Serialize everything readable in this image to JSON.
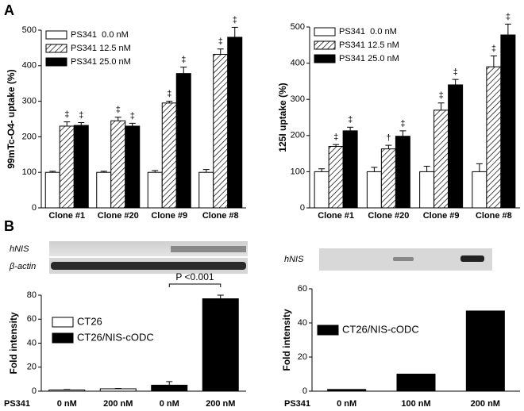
{
  "panels": [
    "A",
    "B"
  ],
  "blots": [
    {
      "labels": [
        "hNIS",
        "β-actin"
      ]
    },
    {
      "labels": [
        "hNIS"
      ]
    }
  ],
  "chart_data": [
    {
      "type": "bar",
      "ylabel": "99mTc-O4- uptake (%)",
      "categories": [
        "Clone #1",
        "Clone #20",
        "Clone #9",
        "Clone #8"
      ],
      "ylim": [
        0,
        500
      ],
      "yticks": [
        0,
        100,
        200,
        300,
        400,
        500
      ],
      "legend": "upper left",
      "series": [
        {
          "name": "PS341  0.0 nM",
          "color": "#ffffff",
          "values": [
            100,
            100,
            100,
            100
          ],
          "errors": [
            3,
            3,
            5,
            8
          ]
        },
        {
          "name": "PS341 12.5 nM",
          "color": "#ffffff",
          "hatch": true,
          "values": [
            230,
            245,
            295,
            432
          ],
          "errors": [
            12,
            10,
            5,
            15
          ],
          "markers": [
            "‡",
            "‡",
            "‡",
            "‡"
          ]
        },
        {
          "name": "PS341 25.0 nM",
          "color": "#000000",
          "values": [
            232,
            230,
            378,
            480
          ],
          "errors": [
            8,
            8,
            18,
            28
          ],
          "markers": [
            "‡",
            "‡",
            "‡",
            "‡"
          ]
        }
      ]
    },
    {
      "type": "bar",
      "ylabel": "125I uptake (%)",
      "categories": [
        "Clone #1",
        "Clone #20",
        "Clone #9",
        "Clone #8"
      ],
      "ylim": [
        0,
        500
      ],
      "yticks": [
        0,
        100,
        200,
        300,
        400,
        500
      ],
      "legend": "upper left",
      "series": [
        {
          "name": "PS341  0.0 nM",
          "color": "#ffffff",
          "values": [
            100,
            100,
            100,
            100
          ],
          "errors": [
            8,
            12,
            15,
            22
          ]
        },
        {
          "name": "PS341 12.5 nM",
          "color": "#ffffff",
          "hatch": true,
          "values": [
            170,
            163,
            270,
            390
          ],
          "errors": [
            5,
            10,
            20,
            30
          ],
          "markers": [
            "‡",
            "†",
            "‡",
            "‡"
          ]
        },
        {
          "name": "PS341 25.0 nM",
          "color": "#000000",
          "values": [
            213,
            198,
            340,
            478
          ],
          "errors": [
            10,
            15,
            15,
            30
          ],
          "markers": [
            "‡",
            "‡",
            "‡",
            "‡"
          ]
        }
      ]
    },
    {
      "type": "bar",
      "ylabel": "Fold intensity",
      "xlabel": "PS341",
      "categories": [
        "0 nM",
        "200 nM",
        "0 nM",
        "200 nM"
      ],
      "ylim": [
        0,
        80
      ],
      "yticks": [
        0,
        20,
        40,
        60,
        80
      ],
      "legend": "upper left",
      "annotation": "P <0.001",
      "series": [
        {
          "name": "CT26",
          "color": "#ffffff",
          "values": [
            1,
            2,
            null,
            null
          ],
          "errors": [
            0.3,
            0.3,
            null,
            null
          ]
        },
        {
          "name": "CT26/NIS-cODC",
          "color": "#000000",
          "values": [
            null,
            null,
            5,
            77
          ],
          "errors": [
            null,
            null,
            3,
            3
          ]
        }
      ]
    },
    {
      "type": "bar",
      "ylabel": "Fold intensity",
      "xlabel": "PS341",
      "categories": [
        "0 nM",
        "100 nM",
        "200 nM"
      ],
      "ylim": [
        0,
        60
      ],
      "yticks": [
        0,
        20,
        40,
        60
      ],
      "legend": "upper left",
      "series": [
        {
          "name": "CT26/NIS-cODC",
          "color": "#000000",
          "values": [
            1,
            10,
            47
          ]
        }
      ]
    }
  ]
}
